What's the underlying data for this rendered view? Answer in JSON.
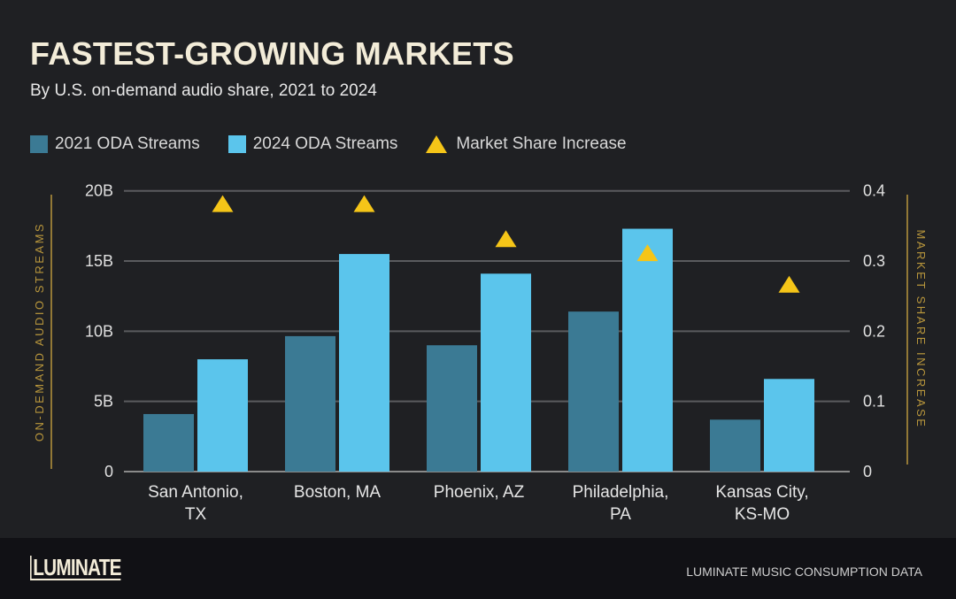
{
  "title": "FASTEST-GROWING MARKETS",
  "subtitle": "By U.S. on-demand audio share, 2021 to 2024",
  "footer": {
    "logo": "LUMINATE",
    "source": "LUMINATE MUSIC CONSUMPTION DATA"
  },
  "colors": {
    "s2021": "#3b7a94",
    "s2024": "#5bc5ec",
    "share": "#f5c518",
    "axis_title": "#b8963c"
  },
  "chart_data": {
    "type": "bar",
    "title": "FASTEST-GROWING MARKETS",
    "categories": [
      [
        "San Antonio,",
        "TX"
      ],
      [
        "Boston, MA"
      ],
      [
        "Phoenix, AZ"
      ],
      [
        "Philadelphia,",
        "PA"
      ],
      [
        "Kansas City,",
        "KS-MO"
      ]
    ],
    "series": [
      {
        "name": "2021 ODA Streams",
        "axis": "left",
        "values": [
          4.1,
          9.65,
          9.0,
          11.4,
          3.7
        ]
      },
      {
        "name": "2024 ODA Streams",
        "axis": "left",
        "values": [
          8.0,
          15.5,
          14.1,
          17.3,
          6.6
        ]
      },
      {
        "name": "Market Share Increase",
        "axis": "right",
        "marker": "triangle",
        "values": [
          0.38,
          0.38,
          0.33,
          0.31,
          0.265
        ]
      }
    ],
    "ylabel": "ON-DEMAND AUDIO STREAMS",
    "ylabel_right": "MARKET SHARE INCREASE",
    "ylim": [
      0,
      20
    ],
    "ylim_right": [
      0,
      0.4
    ],
    "yticks": [
      "0",
      "5B",
      "10B",
      "15B",
      "20B"
    ],
    "yticks_right": [
      "0",
      "0.1",
      "0.2",
      "0.3",
      "0.4"
    ],
    "grid": true,
    "legend": "top-left"
  }
}
